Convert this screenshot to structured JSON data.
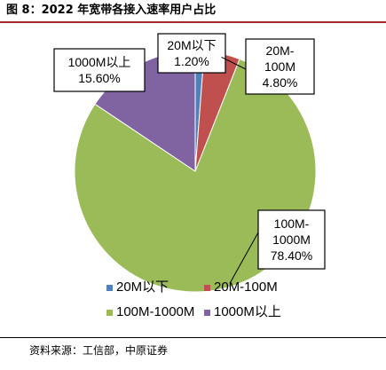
{
  "title": "图 8：2022 年宽带各接入速率用户占比",
  "source": "资料来源：工信部，中原证券",
  "chart_data": {
    "type": "pie",
    "title": "",
    "categories": [
      "20M以下",
      "20M-100M",
      "100M-1000M",
      "1000M以上"
    ],
    "values": [
      1.2,
      4.8,
      78.4,
      15.6
    ],
    "colors": [
      "#4f81bd",
      "#c0504d",
      "#9bbb59",
      "#8064a2"
    ],
    "data_labels": [
      [
        "20M以下",
        "1.20%"
      ],
      [
        "20M-",
        "100M",
        "4.80%"
      ],
      [
        "100M-",
        "1000M",
        "78.40%"
      ],
      [
        "1000M以上",
        "15.60%"
      ]
    ],
    "legend": {
      "placement": "bottom",
      "entries": [
        "20M以下",
        "20M-100M",
        "100M-1000M",
        "1000M以上"
      ]
    },
    "start_angle_deg": 0,
    "direction": "clockwise"
  }
}
